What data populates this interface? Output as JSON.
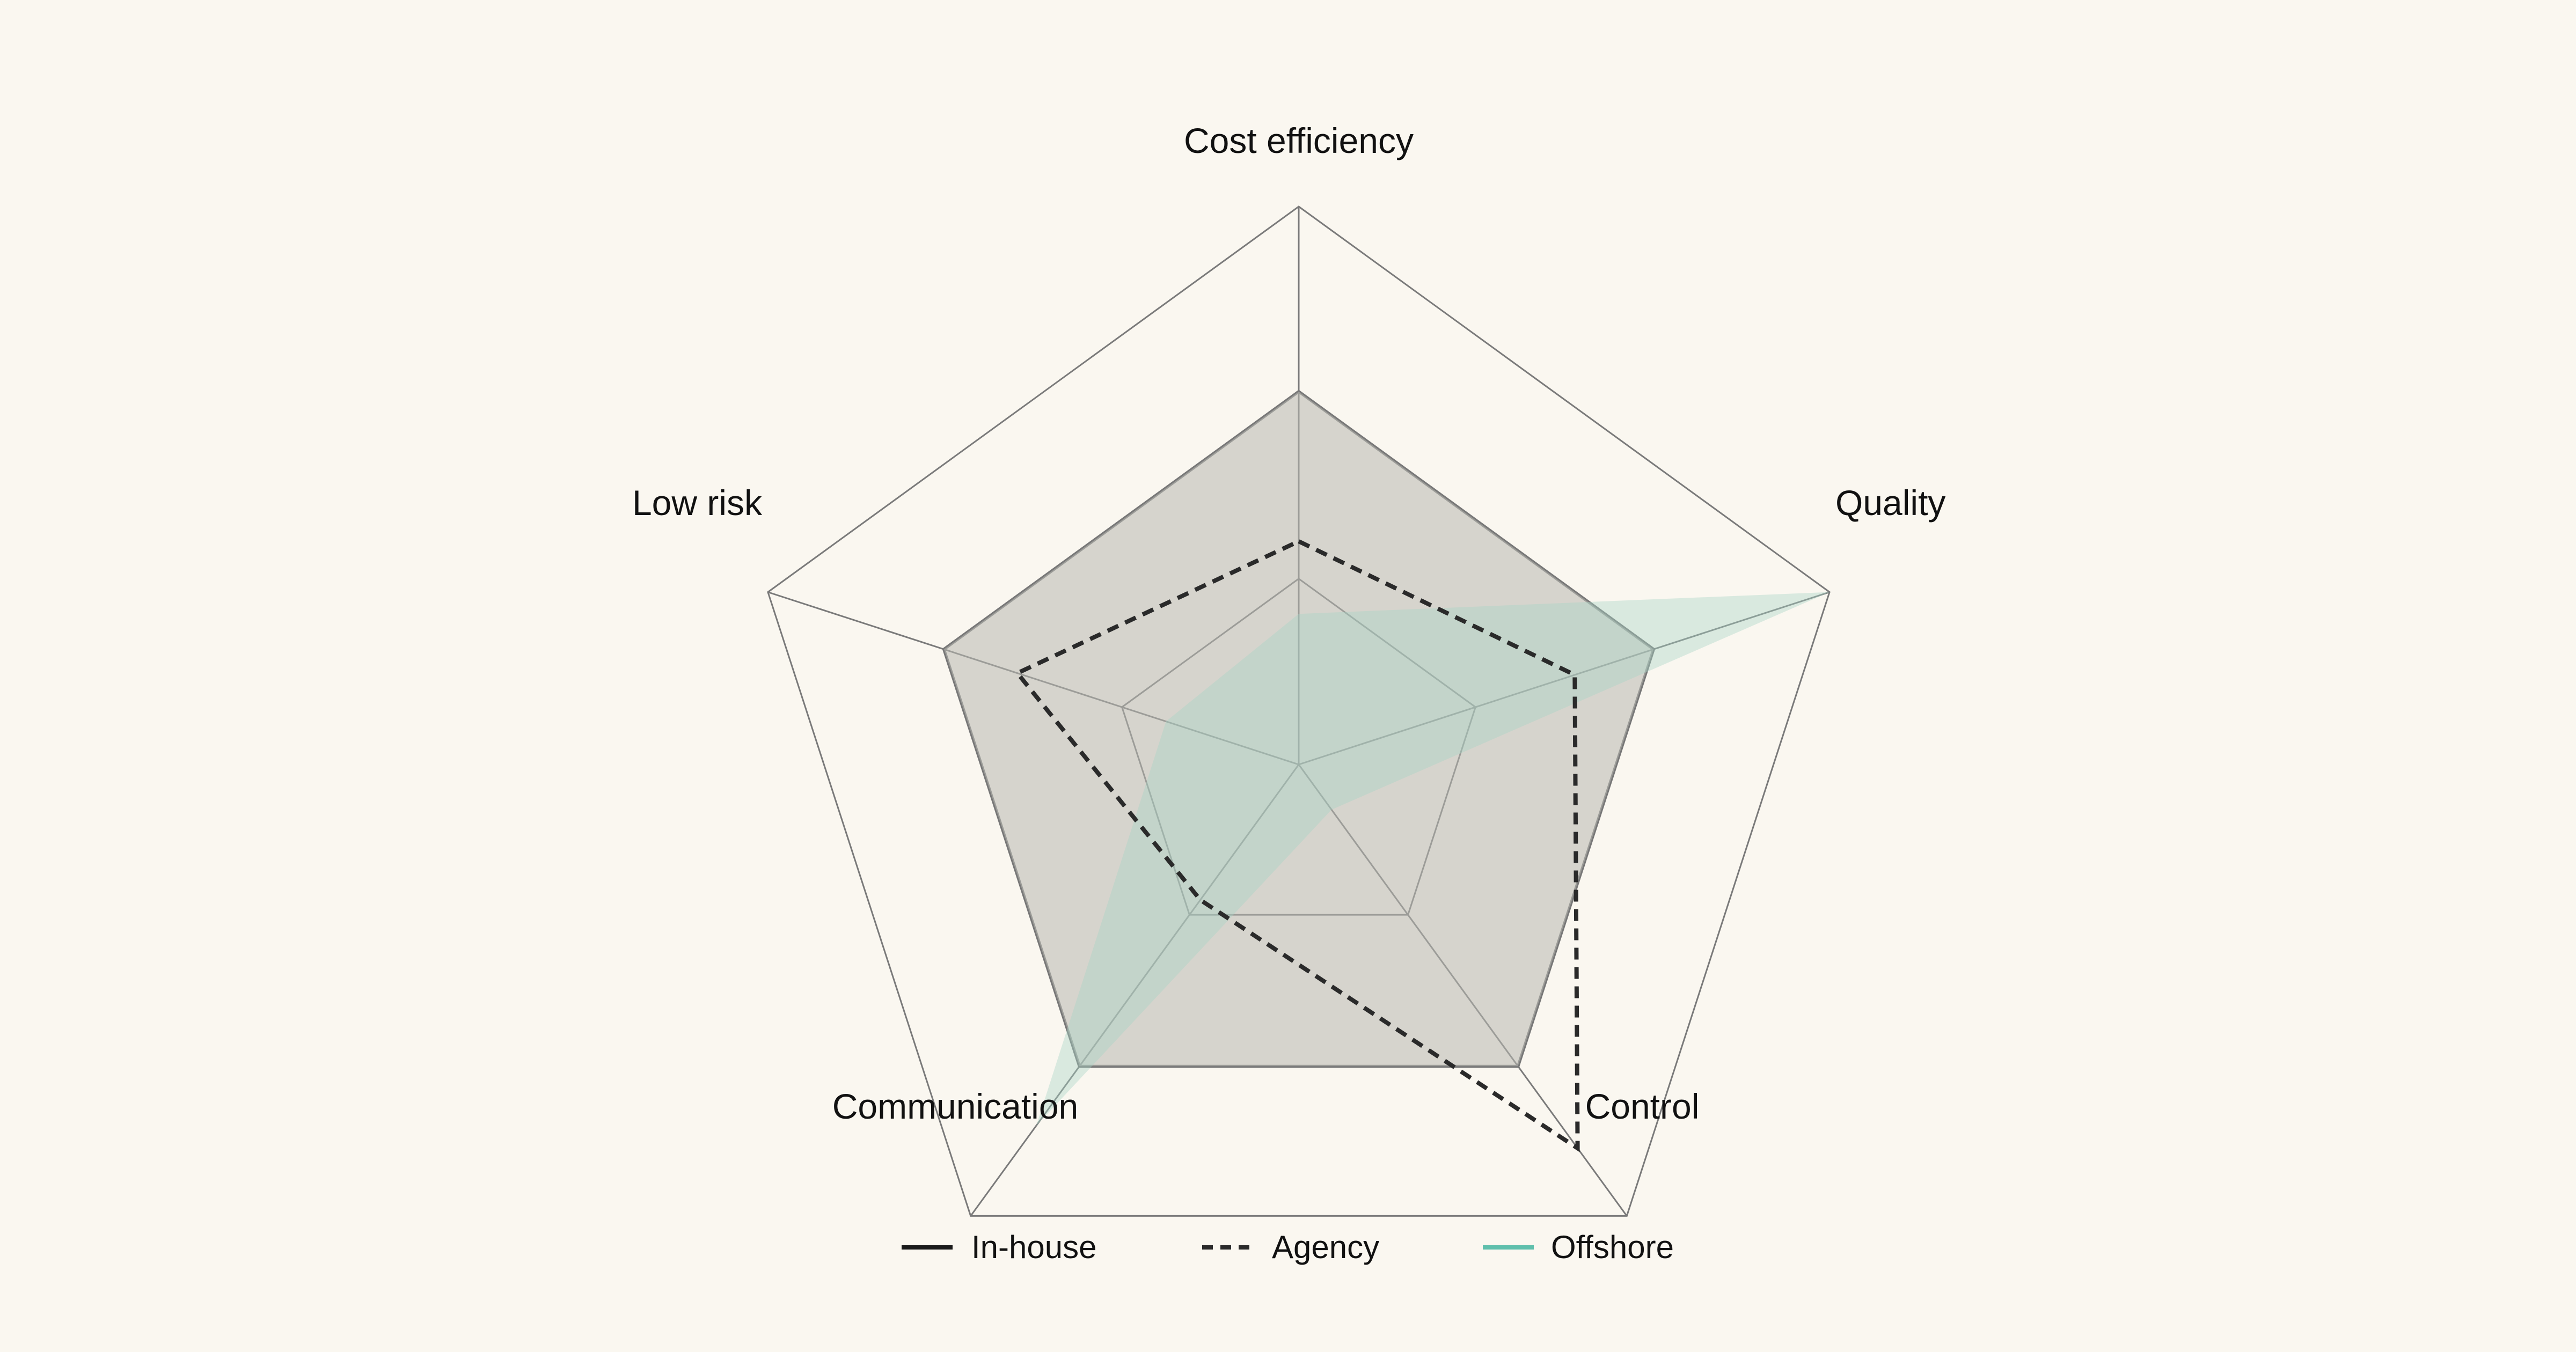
{
  "chart_data": {
    "type": "radar",
    "axes": [
      "Cost efficiency",
      "Quality",
      "Control",
      "Communication",
      "Low risk"
    ],
    "range": [
      0,
      10
    ],
    "rings": [
      3.33,
      6.67,
      10
    ],
    "series": [
      {
        "name": "In-house",
        "values": [
          6.7,
          6.7,
          6.7,
          6.7,
          6.7
        ],
        "line_color": "#777777",
        "line_style": "solid",
        "fill_color": "#b8b8b0",
        "fill_opacity": 0.55,
        "legend_color": "#1a1a1a"
      },
      {
        "name": "Agency",
        "values": [
          4.0,
          5.2,
          8.5,
          3.0,
          5.3
        ],
        "line_color": "#2a2a2a",
        "line_style": "dashed",
        "fill_color": "none",
        "fill_opacity": 0,
        "legend_color": "#2a2a2a"
      },
      {
        "name": "Offshore",
        "values": [
          2.7,
          10.0,
          1.0,
          8.0,
          2.5
        ],
        "line_color": "none",
        "line_style": "none",
        "fill_color": "#a8d5c6",
        "fill_opacity": 0.4,
        "legend_color": "#5fbfac"
      }
    ],
    "legend": {
      "position": "bottom-center"
    },
    "grid": true
  }
}
